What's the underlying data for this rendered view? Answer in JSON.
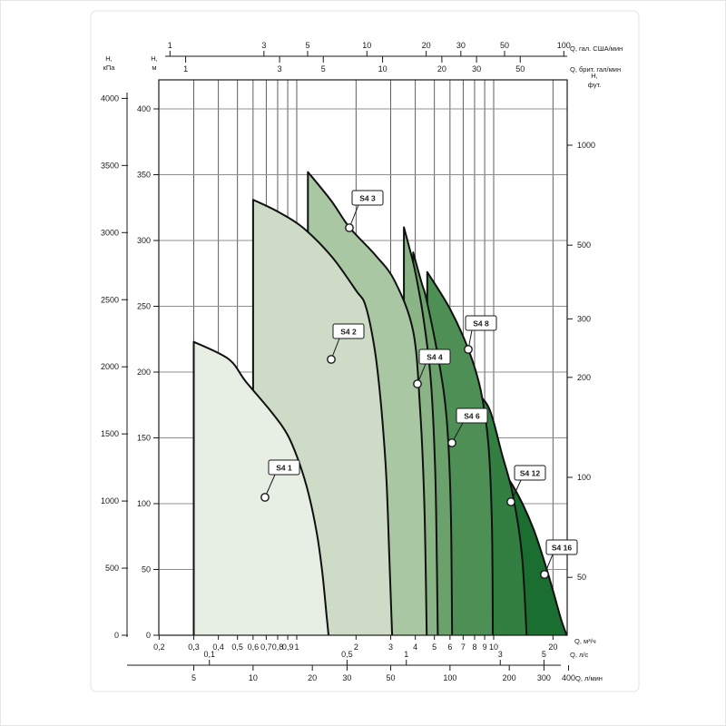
{
  "chart_data": {
    "type": "area",
    "description": "Pump family hydraulic envelope chart (head vs. flow), log flow axis, models S4 1 … S4 16",
    "xlim_m3h": [
      0.2,
      23.5
    ],
    "ylim_m": [
      0,
      420
    ],
    "grid": true,
    "axes": {
      "top_us": {
        "label": "Q, гал. США/мин",
        "ticks": [
          1,
          3,
          5,
          10,
          20,
          30,
          50,
          100
        ]
      },
      "top_imp": {
        "label": "Q, брит. гал/мин",
        "ticks": [
          1,
          3,
          5,
          10,
          20,
          30,
          50
        ]
      },
      "left_kpa": {
        "label": "H, кПа",
        "ticks": [
          4000,
          3500,
          3000,
          2500,
          2000,
          1500,
          1000,
          500,
          0
        ]
      },
      "left_m": {
        "label": "H, м",
        "ticks": [
          400,
          350,
          300,
          250,
          200,
          150,
          100,
          50,
          0
        ]
      },
      "right_ft": {
        "label": "H, фут.",
        "ticks": [
          1000,
          500,
          300,
          200,
          100,
          50
        ]
      },
      "bottom_m3h": {
        "label": "Q, м³/ч",
        "ticks": [
          {
            "v": 0.2,
            "t": "0,2"
          },
          {
            "v": 0.3,
            "t": "0,3"
          },
          {
            "v": 0.4,
            "t": "0,4"
          },
          {
            "v": 0.5,
            "t": "0,5"
          },
          {
            "v": 0.6,
            "t": "0,6"
          },
          {
            "v": 0.7,
            "t": "0,7"
          },
          {
            "v": 0.8,
            "t": "0,8"
          },
          {
            "v": 0.9,
            "t": "0,9"
          },
          {
            "v": 1,
            "t": "1"
          },
          {
            "v": 2,
            "t": "2"
          },
          {
            "v": 3,
            "t": "3"
          },
          {
            "v": 4,
            "t": "4"
          },
          {
            "v": 5,
            "t": "5"
          },
          {
            "v": 6,
            "t": "6"
          },
          {
            "v": 7,
            "t": "7"
          },
          {
            "v": 8,
            "t": "8"
          },
          {
            "v": 9,
            "t": "9"
          },
          {
            "v": 10,
            "t": "10"
          },
          {
            "v": 20,
            "t": "20"
          }
        ]
      },
      "bottom_ls": {
        "label": "Q, л/с",
        "ticks": [
          {
            "v": 0.1,
            "t": "0,1"
          },
          {
            "v": 0.5,
            "t": "0,5"
          },
          {
            "v": 1,
            "t": "1"
          },
          {
            "v": 3,
            "t": "3"
          },
          {
            "v": 5,
            "t": "5"
          }
        ]
      },
      "bottom_lmin": {
        "label": "Q, л/мин",
        "ticks": [
          5,
          10,
          20,
          30,
          50,
          100,
          200,
          300,
          400
        ]
      }
    },
    "series": [
      {
        "name": "S4 1",
        "color": "#e7eee3",
        "qmin_m3h": 0.3,
        "qmax_m3h": 1.45,
        "hmax_m": 223,
        "envelope_qh": [
          [
            0.3,
            223
          ],
          [
            0.45,
            210
          ],
          [
            0.55,
            193
          ],
          [
            0.75,
            169
          ],
          [
            0.9,
            152
          ],
          [
            1.03,
            131
          ],
          [
            1.15,
            107
          ],
          [
            1.27,
            76
          ],
          [
            1.35,
            47
          ],
          [
            1.42,
            14
          ],
          [
            1.45,
            0
          ]
        ],
        "callout": {
          "box": [
            296,
            507
          ],
          "dot": [
            292,
            548
          ]
        }
      },
      {
        "name": "S4 2",
        "color": "#cddbc7",
        "qmin_m3h": 0.6,
        "qmax_m3h": 3.05,
        "hmax_m": 331,
        "envelope_qh": [
          [
            0.6,
            331
          ],
          [
            0.8,
            322
          ],
          [
            1.07,
            310
          ],
          [
            1.5,
            288
          ],
          [
            2.0,
            262
          ],
          [
            2.24,
            250
          ],
          [
            2.5,
            215
          ],
          [
            2.69,
            172
          ],
          [
            2.85,
            120
          ],
          [
            2.95,
            60
          ],
          [
            3.05,
            0
          ]
        ],
        "callout": {
          "box": [
            367,
            357
          ],
          "dot": [
            365,
            396
          ]
        }
      },
      {
        "name": "S4 3",
        "color": "#aac7a4",
        "qmin_m3h": 1.14,
        "qmax_m3h": 4.57,
        "hmax_m": 352,
        "envelope_qh": [
          [
            1.14,
            352
          ],
          [
            1.5,
            330
          ],
          [
            1.85,
            310
          ],
          [
            2.5,
            289
          ],
          [
            3.15,
            269
          ],
          [
            3.9,
            231
          ],
          [
            4.23,
            172
          ],
          [
            4.45,
            97
          ],
          [
            4.57,
            0
          ]
        ],
        "callout": {
          "box": [
            388,
            210
          ],
          "dot": [
            385,
            251
          ]
        }
      },
      {
        "name": "S4 4",
        "color": "#8bb487",
        "qmin_m3h": 3.5,
        "qmax_m3h": 5.2,
        "hmax_m": 310,
        "envelope_qh": [
          [
            3.5,
            310
          ],
          [
            3.8,
            290
          ],
          [
            4.0,
            276
          ],
          [
            4.4,
            241
          ],
          [
            4.8,
            193
          ],
          [
            5.05,
            124
          ],
          [
            5.15,
            50
          ],
          [
            5.2,
            0
          ]
        ],
        "callout": {
          "box": [
            462,
            385
          ],
          "dot": [
            460,
            423
          ]
        }
      },
      {
        "name": "S4 6",
        "color": "#6ba26c",
        "qmin_m3h": 3.9,
        "qmax_m3h": 6.15,
        "hmax_m": 291,
        "envelope_qh": [
          [
            3.9,
            291
          ],
          [
            4.3,
            268
          ],
          [
            4.56,
            255
          ],
          [
            5.24,
            210
          ],
          [
            5.76,
            166
          ],
          [
            6.05,
            100
          ],
          [
            6.15,
            0
          ]
        ],
        "callout": {
          "box": [
            503,
            450
          ],
          "dot": [
            498,
            488
          ]
        }
      },
      {
        "name": "S4 8",
        "color": "#4d8f55",
        "qmin_m3h": 4.6,
        "qmax_m3h": 9.9,
        "hmax_m": 276,
        "envelope_qh": [
          [
            4.6,
            276
          ],
          [
            6.0,
            248
          ],
          [
            7.45,
            217
          ],
          [
            8.6,
            186
          ],
          [
            9.4,
            145
          ],
          [
            9.8,
            83
          ],
          [
            9.9,
            0
          ]
        ],
        "callout": {
          "box": [
            513,
            348
          ],
          "dot": [
            516,
            385
          ]
        }
      },
      {
        "name": "S4 12",
        "color": "#337e41",
        "qmin_m3h": 6.6,
        "qmax_m3h": 14.7,
        "hmax_m": 195,
        "envelope_qh": [
          [
            6.6,
            195
          ],
          [
            8.0,
            185
          ],
          [
            9.5,
            172
          ],
          [
            11,
            138
          ],
          [
            12.5,
            107
          ],
          [
            13.9,
            62
          ],
          [
            14.7,
            0
          ]
        ],
        "callout": {
          "box": [
            567,
            513
          ],
          "dot": [
            563,
            553
          ]
        }
      },
      {
        "name": "S4 16",
        "color": "#1a6e2f",
        "qmin_m3h": 9.1,
        "qmax_m3h": 23.5,
        "hmax_m": 135,
        "envelope_qh": [
          [
            9.1,
            135
          ],
          [
            10.5,
            128
          ],
          [
            12,
            118
          ],
          [
            14,
            100
          ],
          [
            16,
            80
          ],
          [
            18,
            57
          ],
          [
            20,
            34
          ],
          [
            22,
            12
          ],
          [
            23.5,
            0
          ]
        ],
        "callout": {
          "box": [
            602,
            595
          ],
          "dot": [
            600,
            633
          ]
        }
      }
    ]
  }
}
